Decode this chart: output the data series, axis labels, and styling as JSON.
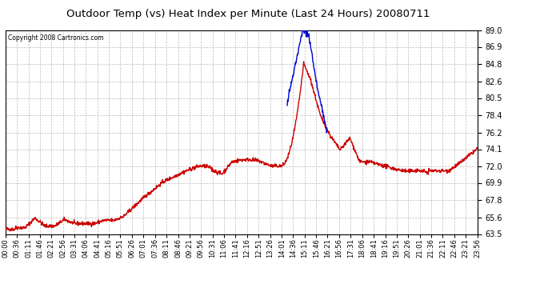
{
  "title": "Outdoor Temp (vs) Heat Index per Minute (Last 24 Hours) 20080711",
  "copyright": "Copyright 2008 Cartronics.com",
  "background_color": "#ffffff",
  "plot_bg_color": "#ffffff",
  "grid_color": "#bbbbbb",
  "yticks": [
    63.5,
    65.6,
    67.8,
    69.9,
    72.0,
    74.1,
    76.2,
    78.4,
    80.5,
    82.6,
    84.8,
    86.9,
    89.0
  ],
  "ymin": 63.5,
  "ymax": 89.0,
  "xtick_labels": [
    "00:00",
    "00:36",
    "01:11",
    "01:46",
    "02:21",
    "02:56",
    "03:31",
    "04:06",
    "04:41",
    "05:16",
    "05:51",
    "06:26",
    "07:01",
    "07:36",
    "08:11",
    "08:46",
    "09:21",
    "09:56",
    "10:31",
    "11:06",
    "11:41",
    "12:16",
    "12:51",
    "13:26",
    "14:01",
    "14:36",
    "15:11",
    "15:46",
    "16:21",
    "16:56",
    "17:31",
    "18:06",
    "18:41",
    "19:16",
    "19:51",
    "20:26",
    "21:01",
    "21:36",
    "22:11",
    "22:46",
    "23:21",
    "23:56"
  ],
  "temp_color": "#cc0000",
  "heat_color": "#0000cc",
  "line_width": 1.0
}
